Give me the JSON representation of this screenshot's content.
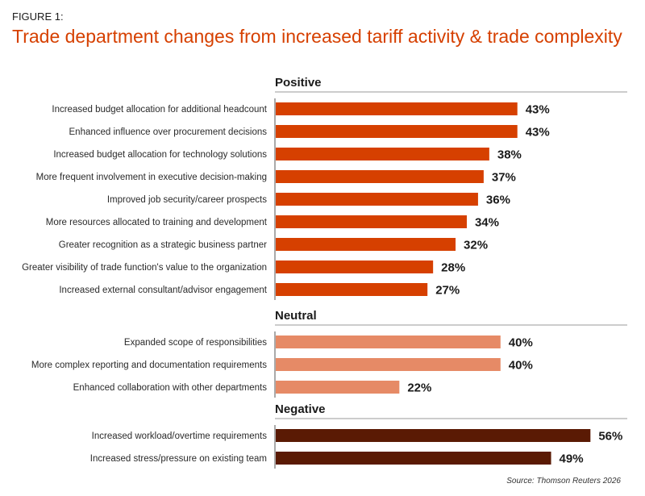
{
  "figure_label": "FIGURE 1:",
  "title": "Trade department changes from increased tariff activity & trade complexity",
  "source": "Source: Thomson Reuters 2026",
  "chart_data": {
    "type": "bar",
    "orientation": "horizontal",
    "title": "Trade department changes from increased tariff activity & trade complexity",
    "xlabel": "",
    "ylabel": "",
    "value_format": "percent",
    "groups": [
      {
        "name": "Positive",
        "color": "#d64000",
        "categories": [
          "Increased budget allocation for additional headcount",
          "Enhanced influence over procurement decisions",
          "Increased budget allocation for technology solutions",
          "More frequent involvement in executive decision-making",
          "Improved job security/career prospects",
          "More resources allocated to training and development",
          "Greater recognition as a strategic business partner",
          "Greater visibility of trade function's value to the organization",
          "Increased external consultant/advisor engagement"
        ],
        "values": [
          43,
          43,
          38,
          37,
          36,
          34,
          32,
          28,
          27
        ],
        "labels": [
          "43%",
          "43%",
          "38%",
          "37%",
          "36%",
          "34%",
          "32%",
          "28%",
          "27%"
        ]
      },
      {
        "name": "Neutral",
        "color": "#e68a66",
        "categories": [
          "Expanded scope of responsibilities",
          "More complex reporting and documentation requirements",
          "Enhanced collaboration with other departments"
        ],
        "values": [
          40,
          40,
          22
        ],
        "labels": [
          "40%",
          "40%",
          "22%"
        ]
      },
      {
        "name": "Negative",
        "color": "#5a1a04",
        "categories": [
          "Increased workload/overtime requirements",
          "Increased stress/pressure on existing team"
        ],
        "values": [
          56,
          49
        ],
        "labels": [
          "56%",
          "49%"
        ]
      }
    ]
  }
}
